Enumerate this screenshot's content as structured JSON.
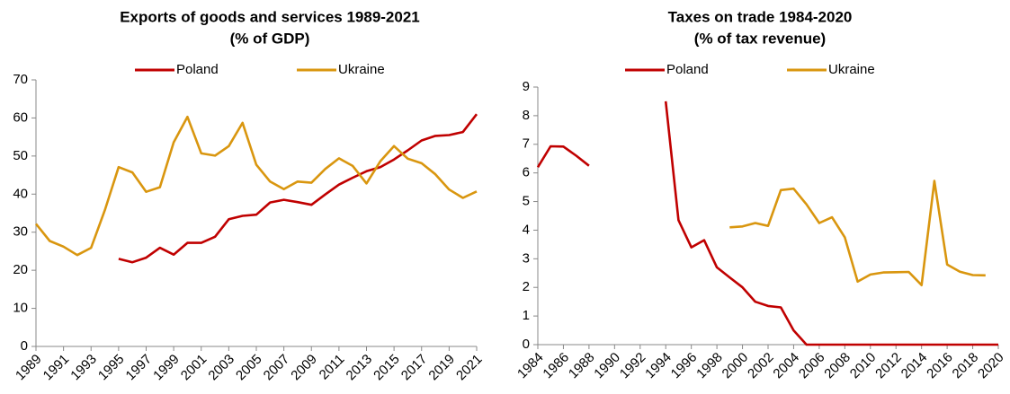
{
  "chart_data": [
    {
      "type": "line",
      "title": "Exports of goods and services 1989-2021",
      "subtitle": "(% of GDP)",
      "x": [
        1989,
        1990,
        1991,
        1992,
        1993,
        1994,
        1995,
        1996,
        1997,
        1998,
        1999,
        2000,
        2001,
        2002,
        2003,
        2004,
        2005,
        2006,
        2007,
        2008,
        2009,
        2010,
        2011,
        2012,
        2013,
        2014,
        2015,
        2016,
        2017,
        2018,
        2019,
        2020,
        2021
      ],
      "series": [
        {
          "name": "Poland",
          "color": "#c00000",
          "values": [
            null,
            null,
            null,
            null,
            null,
            null,
            23.0,
            22.1,
            23.3,
            25.9,
            24.1,
            27.2,
            27.2,
            28.8,
            33.4,
            34.3,
            34.6,
            37.8,
            38.5,
            37.9,
            37.2,
            39.9,
            42.5,
            44.3,
            46.0,
            47.1,
            49.1,
            51.5,
            54.1,
            55.3,
            55.5,
            56.3,
            61.0
          ]
        },
        {
          "name": "Ukraine",
          "color": "#d9960f",
          "values": [
            32.2,
            27.7,
            26.2,
            24.0,
            25.9,
            35.8,
            47.1,
            45.7,
            40.6,
            41.8,
            53.6,
            60.3,
            50.7,
            50.1,
            52.6,
            58.7,
            47.7,
            43.3,
            41.3,
            43.3,
            43.0,
            46.6,
            49.4,
            47.4,
            42.8,
            48.6,
            52.6,
            49.3,
            48.1,
            45.2,
            41.2,
            39.0,
            40.7
          ]
        }
      ],
      "xlim": [
        1989,
        2021
      ],
      "xticks": [
        1989,
        1991,
        1993,
        1995,
        1997,
        1999,
        2001,
        2003,
        2005,
        2007,
        2009,
        2011,
        2013,
        2015,
        2017,
        2019,
        2021
      ],
      "ylim": [
        0,
        70
      ],
      "yticks": [
        0,
        10,
        20,
        30,
        40,
        50,
        60,
        70
      ],
      "legend": "top"
    },
    {
      "type": "line",
      "title": "Taxes on trade 1984-2020",
      "subtitle": "(% of tax revenue)",
      "x": [
        1984,
        1985,
        1986,
        1987,
        1988,
        1989,
        1990,
        1991,
        1992,
        1993,
        1994,
        1995,
        1996,
        1997,
        1998,
        1999,
        2000,
        2001,
        2002,
        2003,
        2004,
        2005,
        2006,
        2007,
        2008,
        2009,
        2010,
        2011,
        2012,
        2013,
        2014,
        2015,
        2016,
        2017,
        2018,
        2019,
        2020
      ],
      "series": [
        {
          "name": "Poland",
          "color": "#c00000",
          "values": [
            6.2,
            6.93,
            6.92,
            6.6,
            6.25,
            null,
            null,
            null,
            null,
            null,
            8.5,
            4.35,
            3.4,
            3.65,
            2.7,
            2.35,
            2.0,
            1.5,
            1.35,
            1.3,
            0.5,
            0,
            0,
            0,
            0,
            0,
            0,
            0,
            0,
            0,
            0,
            0,
            0,
            0,
            0,
            0,
            0
          ]
        },
        {
          "name": "Ukraine",
          "color": "#d9960f",
          "values": [
            null,
            null,
            null,
            null,
            null,
            null,
            null,
            null,
            null,
            null,
            null,
            null,
            null,
            null,
            null,
            4.1,
            4.13,
            4.25,
            4.15,
            5.4,
            5.45,
            4.9,
            4.25,
            4.45,
            3.75,
            2.2,
            2.45,
            2.52,
            2.53,
            2.54,
            2.08,
            5.72,
            2.8,
            2.55,
            2.43,
            2.42,
            null
          ]
        }
      ],
      "xlim": [
        1984,
        2020
      ],
      "xticks": [
        1984,
        1986,
        1988,
        1990,
        1992,
        1994,
        1996,
        1998,
        2000,
        2002,
        2004,
        2006,
        2008,
        2010,
        2012,
        2014,
        2016,
        2018,
        2020
      ],
      "ylim": [
        0,
        9
      ],
      "yticks": [
        0,
        1,
        2,
        3,
        4,
        5,
        6,
        7,
        8,
        9
      ],
      "legend": "top"
    }
  ]
}
